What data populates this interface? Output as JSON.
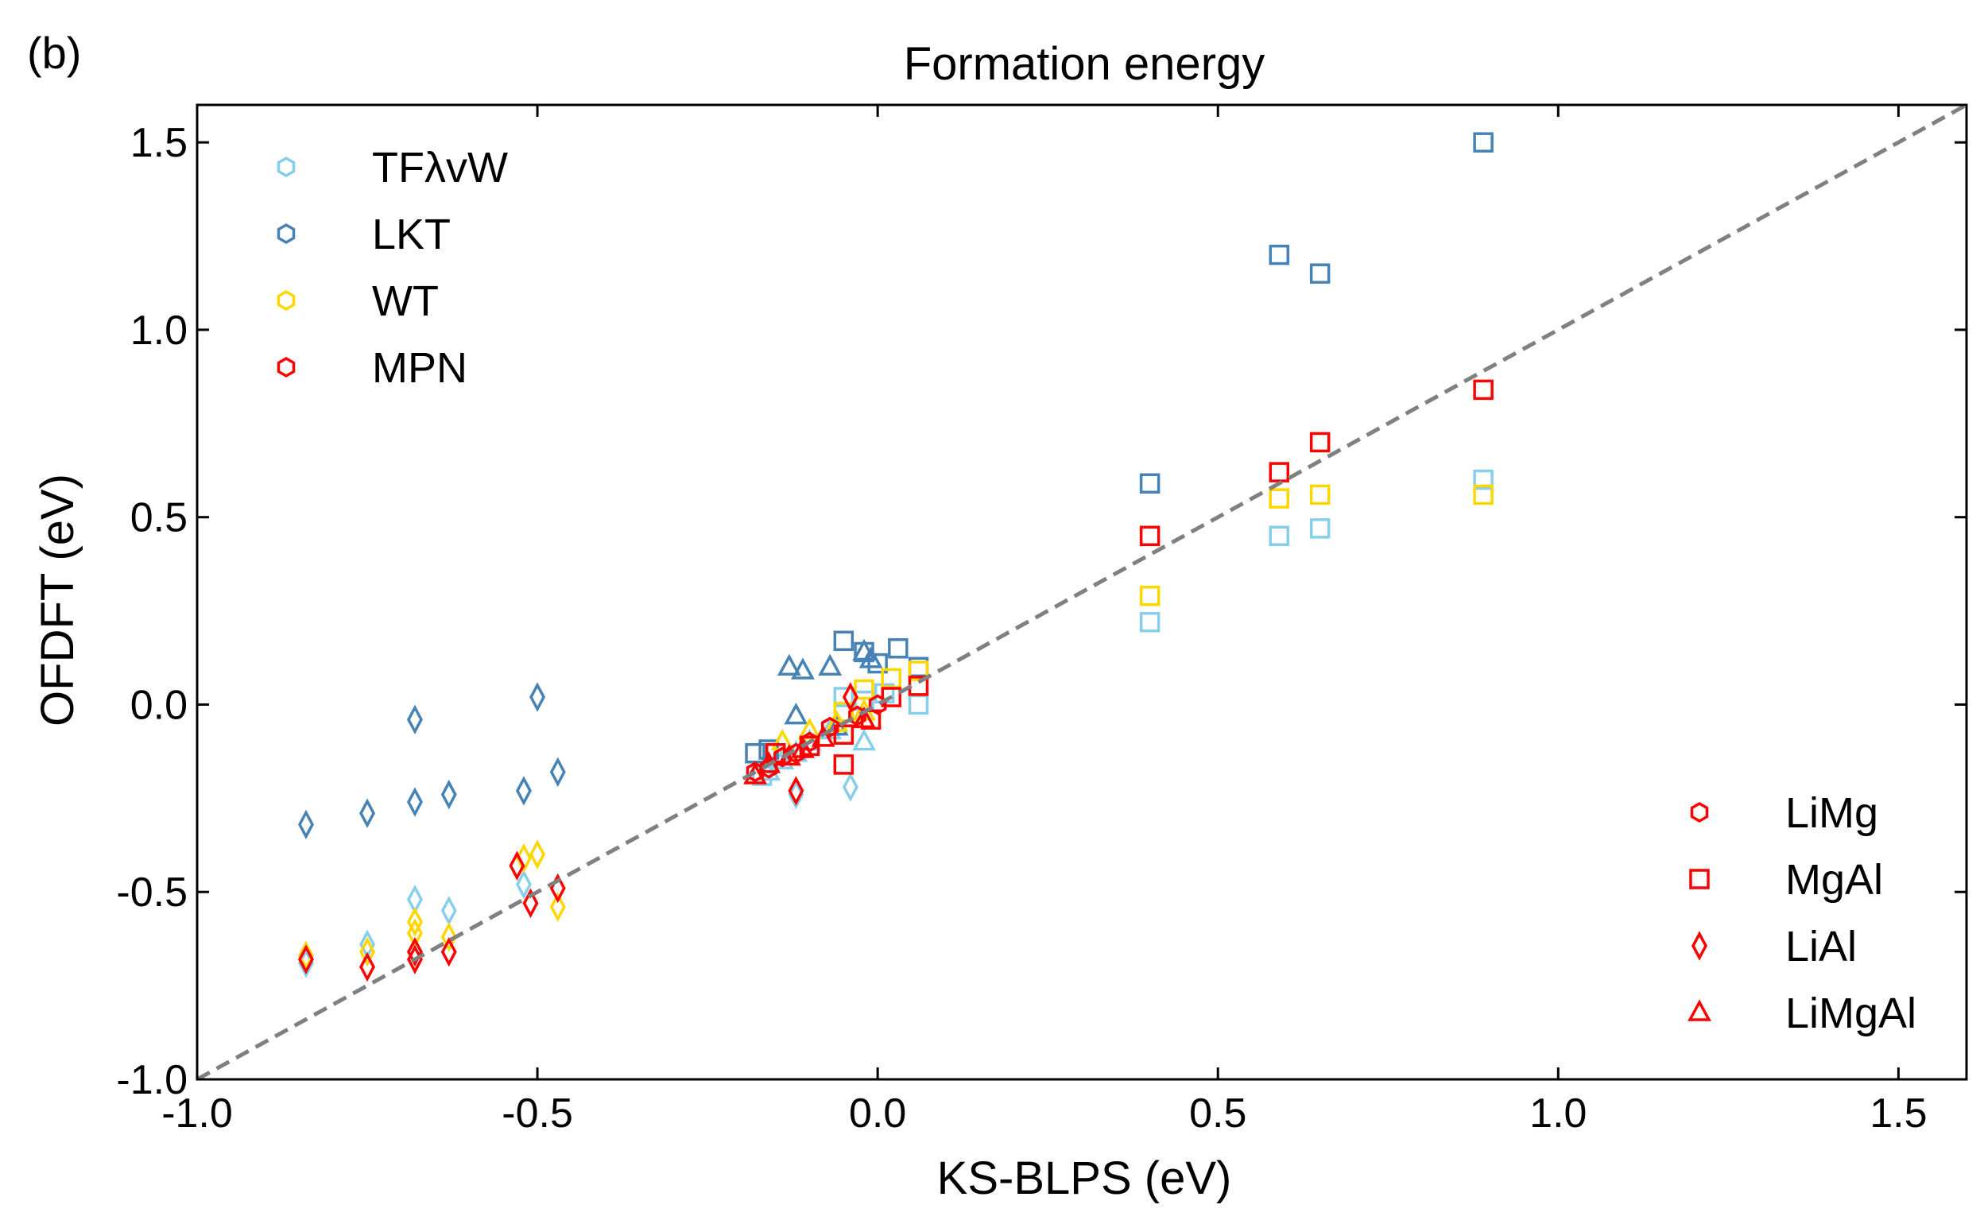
{
  "panel_label": "(b)",
  "chart_data": {
    "type": "scatter",
    "title": "Formation energy",
    "xlabel": "KS-BLPS (eV)",
    "ylabel": "OFDFT (eV)",
    "xlim": [
      -1.0,
      1.6
    ],
    "ylim": [
      -1.0,
      1.6
    ],
    "xticks": [
      -1.0,
      -0.5,
      0.0,
      0.5,
      1.0,
      1.5
    ],
    "yticks": [
      -1.0,
      -0.5,
      0.0,
      0.5,
      1.0,
      1.5
    ],
    "xtick_labels": [
      "-1.0",
      "-0.5",
      "0.0",
      "0.5",
      "1.0",
      "1.5"
    ],
    "ytick_labels": [
      "-1.0",
      "-0.5",
      "0.0",
      "0.5",
      "1.0",
      "1.5"
    ],
    "reference_line": {
      "x": [
        -1.0,
        1.6
      ],
      "y": [
        -1.0,
        1.6
      ],
      "color": "#808080",
      "style": "dashed"
    },
    "method_legend": [
      {
        "name": "TFλvW",
        "color": "#87ceeb"
      },
      {
        "name": "LKT",
        "color": "#4682b4"
      },
      {
        "name": "WT",
        "color": "#ffd700"
      },
      {
        "name": "MPN",
        "color": "#ff0000"
      }
    ],
    "system_legend": [
      {
        "name": "LiMg",
        "marker": "hexagon"
      },
      {
        "name": "MgAl",
        "marker": "square"
      },
      {
        "name": "LiAl",
        "marker": "diamond"
      },
      {
        "name": "LiMgAl",
        "marker": "triangle"
      }
    ],
    "series": [
      {
        "method": "TFλvW",
        "color": "#87ceeb",
        "MgAl": {
          "x": [
            0.4,
            0.59,
            0.65,
            0.89,
            -0.05,
            -0.02,
            0.01,
            0.06,
            -0.17
          ],
          "y": [
            0.22,
            0.45,
            0.47,
            0.6,
            0.02,
            0.01,
            0.03,
            0.0,
            -0.19
          ]
        },
        "LiAl": {
          "x": [
            -0.84,
            -0.75,
            -0.68,
            -0.63,
            -0.52,
            -0.12,
            -0.04
          ],
          "y": [
            -0.69,
            -0.64,
            -0.52,
            -0.55,
            -0.48,
            -0.24,
            -0.22
          ]
        },
        "LiMgAl": {
          "x": [
            -0.16,
            -0.14,
            -0.12,
            -0.1,
            -0.07,
            -0.02
          ],
          "y": [
            -0.18,
            -0.15,
            -0.13,
            -0.1,
            -0.07,
            -0.1
          ]
        }
      },
      {
        "method": "LKT",
        "color": "#4682b4",
        "MgAl": {
          "x": [
            0.4,
            0.59,
            0.65,
            0.89,
            -0.05,
            -0.02,
            0.0,
            0.03,
            0.06,
            -0.18,
            -0.16
          ],
          "y": [
            0.59,
            1.2,
            1.15,
            1.5,
            0.17,
            0.14,
            0.11,
            0.15,
            0.1,
            -0.13,
            -0.12
          ]
        },
        "LiAl": {
          "x": [
            -0.84,
            -0.75,
            -0.68,
            -0.68,
            -0.63,
            -0.52,
            -0.5,
            -0.47
          ],
          "y": [
            -0.32,
            -0.29,
            -0.04,
            -0.26,
            -0.24,
            -0.23,
            0.02,
            -0.18
          ]
        },
        "LiMgAl": {
          "x": [
            -0.13,
            -0.11,
            -0.07,
            -0.02,
            -0.01,
            -0.12,
            -0.06
          ],
          "y": [
            0.1,
            0.09,
            0.1,
            0.14,
            0.12,
            -0.03,
            -0.06
          ]
        }
      },
      {
        "method": "WT",
        "color": "#ffd700",
        "MgAl": {
          "x": [
            0.4,
            0.59,
            0.65,
            0.89,
            0.06,
            0.02,
            -0.02,
            -0.05
          ],
          "y": [
            0.29,
            0.55,
            0.56,
            0.56,
            0.09,
            0.07,
            0.04,
            -0.02
          ]
        },
        "LiAl": {
          "x": [
            -0.84,
            -0.75,
            -0.68,
            -0.68,
            -0.63,
            -0.52,
            -0.5,
            -0.47
          ],
          "y": [
            -0.67,
            -0.66,
            -0.61,
            -0.58,
            -0.62,
            -0.41,
            -0.4,
            -0.54
          ]
        },
        "LiMgAl": {
          "x": [
            -0.14,
            -0.1,
            -0.06,
            -0.02
          ],
          "y": [
            -0.1,
            -0.07,
            -0.05,
            -0.02
          ]
        }
      },
      {
        "method": "MPN",
        "color": "#ff0000",
        "MgAl": {
          "x": [
            0.4,
            0.59,
            0.65,
            0.89,
            -0.05,
            -0.05,
            -0.01,
            0.02,
            0.06,
            -0.1,
            -0.15
          ],
          "y": [
            0.45,
            0.62,
            0.7,
            0.84,
            -0.16,
            -0.08,
            -0.04,
            0.02,
            0.05,
            -0.11,
            -0.13
          ]
        },
        "LiAl": {
          "x": [
            -0.84,
            -0.75,
            -0.68,
            -0.68,
            -0.63,
            -0.53,
            -0.51,
            -0.47,
            -0.12,
            -0.04
          ],
          "y": [
            -0.68,
            -0.7,
            -0.66,
            -0.68,
            -0.66,
            -0.43,
            -0.53,
            -0.49,
            -0.23,
            0.02
          ]
        },
        "LiMgAl": {
          "x": [
            -0.18,
            -0.16,
            -0.13,
            -0.11,
            -0.08,
            -0.02
          ],
          "y": [
            -0.19,
            -0.16,
            -0.14,
            -0.12,
            -0.09,
            -0.04
          ]
        },
        "LiMg": {
          "x": [
            -0.18,
            -0.16,
            -0.14,
            -0.12,
            -0.1,
            -0.07,
            -0.03,
            0.0
          ],
          "y": [
            -0.18,
            -0.17,
            -0.14,
            -0.13,
            -0.1,
            -0.06,
            -0.03,
            0.0
          ]
        }
      }
    ]
  }
}
